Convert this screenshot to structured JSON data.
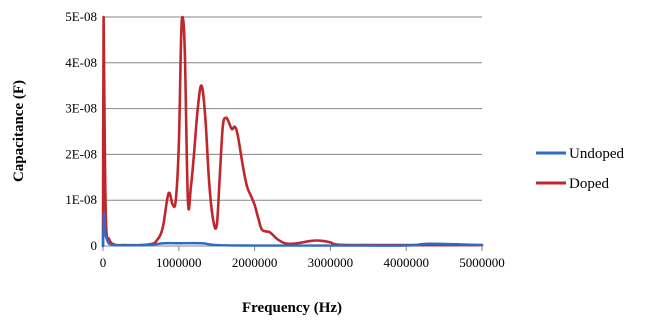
{
  "chart_data": {
    "type": "line",
    "title": "",
    "xlabel": "Frequency (Hz)",
    "ylabel": "Capacitance (F)",
    "xlim": [
      0,
      5000000
    ],
    "ylim": [
      0,
      5e-08
    ],
    "x_ticks": [
      {
        "value": 0,
        "label": "0"
      },
      {
        "value": 1000000,
        "label": "1000000"
      },
      {
        "value": 2000000,
        "label": "2000000"
      },
      {
        "value": 3000000,
        "label": "3000000"
      },
      {
        "value": 4000000,
        "label": "4000000"
      },
      {
        "value": 5000000,
        "label": "5000000"
      }
    ],
    "y_ticks": [
      {
        "value": 0,
        "label": "0"
      },
      {
        "value": 1e-08,
        "label": "1E-08"
      },
      {
        "value": 2e-08,
        "label": "2E-08"
      },
      {
        "value": 3e-08,
        "label": "3E-08"
      },
      {
        "value": 4e-08,
        "label": "4E-08"
      },
      {
        "value": 5e-08,
        "label": "5E-08"
      }
    ],
    "grid": {
      "horizontal": true,
      "vertical": false
    },
    "legend_position": "right",
    "series": [
      {
        "name": "Undoped",
        "color": "#2e6bc4",
        "x": [
          0,
          15000,
          30000,
          50000,
          80000,
          150000,
          300000,
          600000,
          800000,
          1000000,
          1300000,
          1500000,
          2000000,
          2500000,
          3000000,
          4000000,
          4300000,
          5000000
        ],
        "y": [
          0,
          7.3e-09,
          3e-09,
          1.5e-09,
          5e-10,
          2e-10,
          1.5e-10,
          2e-10,
          6e-10,
          6e-10,
          6e-10,
          2e-10,
          1e-10,
          1e-10,
          1e-10,
          1e-10,
          5e-10,
          2e-10
        ]
      },
      {
        "name": "Doped",
        "color": "#c0272d",
        "x": [
          0,
          8000,
          20000,
          40000,
          80000,
          150000,
          300000,
          500000,
          650000,
          700000,
          760000,
          800000,
          850000,
          880000,
          920000,
          960000,
          1000000,
          1030000,
          1050000,
          1080000,
          1120000,
          1160000,
          1200000,
          1250000,
          1300000,
          1350000,
          1400000,
          1450000,
          1500000,
          1540000,
          1580000,
          1620000,
          1660000,
          1700000,
          1740000,
          1780000,
          1850000,
          1900000,
          1950000,
          2000000,
          2050000,
          2100000,
          2200000,
          2300000,
          2400000,
          2500000,
          2600000,
          2700000,
          2800000,
          2900000,
          3000000,
          3100000,
          3500000,
          4000000,
          4500000,
          5000000
        ],
        "y": [
          0,
          5e-08,
          2.8e-08,
          5e-09,
          1.5e-09,
          3e-10,
          2e-10,
          2e-10,
          5e-10,
          1e-09,
          2.5e-09,
          5e-09,
          1.05e-08,
          1.15e-08,
          9e-09,
          1e-08,
          2.2e-08,
          4.5e-08,
          5e-08,
          4.2e-08,
          1e-08,
          1.3e-08,
          2e-08,
          3e-08,
          3.5e-08,
          2.8e-08,
          1.4e-08,
          6e-09,
          4.5e-09,
          1.5e-08,
          2.6e-08,
          2.8e-08,
          2.7e-08,
          2.55e-08,
          2.6e-08,
          2.4e-08,
          1.7e-08,
          1.3e-08,
          1.1e-08,
          9e-09,
          6e-09,
          3.5e-09,
          3e-09,
          1.5e-09,
          6e-10,
          5e-10,
          7e-10,
          1e-09,
          1.2e-09,
          1.1e-09,
          8e-10,
          3e-10,
          2e-10,
          2e-10,
          2e-10,
          2e-10
        ]
      }
    ]
  }
}
